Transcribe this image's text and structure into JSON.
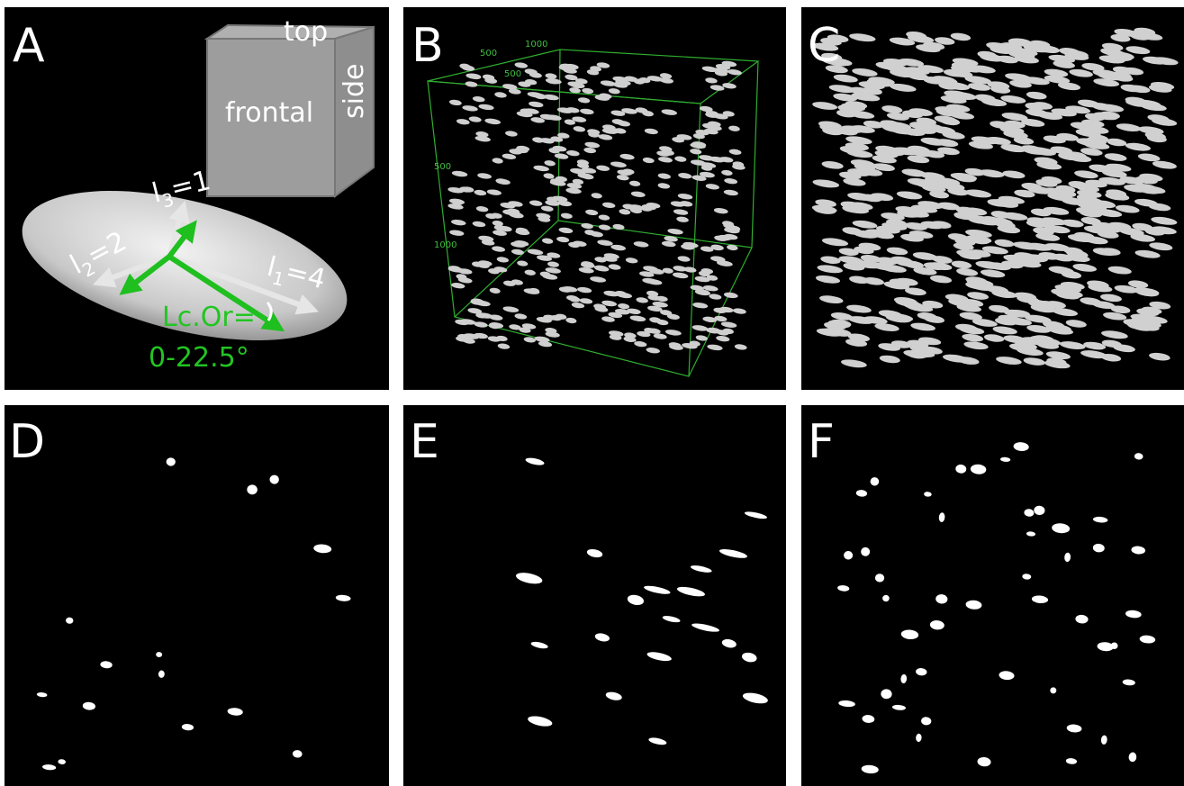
{
  "panels": [
    {
      "label": "A"
    },
    {
      "label": "B"
    },
    {
      "label": "C"
    },
    {
      "label": "D"
    },
    {
      "label": "E"
    },
    {
      "label": "F"
    }
  ],
  "panel_a": {
    "cube": {
      "top": "top",
      "frontal": "frontal",
      "side": "side"
    },
    "axes": [
      {
        "base": "l",
        "sub": "3",
        "rest": "=1"
      },
      {
        "base": "l",
        "sub": "2",
        "rest": "=2"
      },
      {
        "base": "l",
        "sub": "1",
        "rest": "=4"
      }
    ],
    "angle": {
      "line1": "Lc.Or=",
      "line2": "0-22.5°"
    }
  },
  "panel_b": {
    "axis_labels": [
      "500",
      "1000",
      "500",
      "500",
      "1000"
    ]
  }
}
